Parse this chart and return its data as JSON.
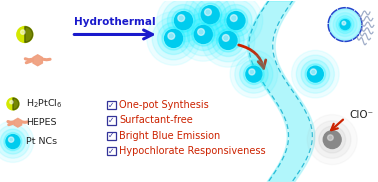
{
  "bg_color": "#ffffff",
  "arrow_color": "#1a1acc",
  "red_arrow_color": "#cc2200",
  "hydrothermal_label": "Hydrothermal",
  "checkmarks": [
    "One-pot Synthesis",
    "Surfactant-free",
    "Bright Blue Emission",
    "Hypochlorate Responsiveness"
  ],
  "clo_label": "ClO⁻",
  "figsize": [
    3.78,
    1.82
  ],
  "dpi": 100
}
